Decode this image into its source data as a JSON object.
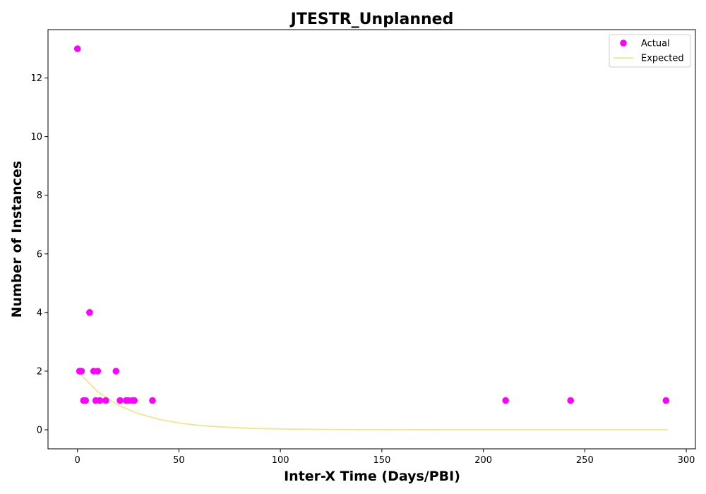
{
  "chart_data": {
    "type": "scatter",
    "title": "JTESTR_Unplanned",
    "xlabel": "Inter-X Time (Days/PBI)",
    "ylabel": "Number of Instances",
    "xlim": [
      -14.5,
      304.5
    ],
    "ylim": [
      -0.65,
      13.65
    ],
    "xticks": [
      0,
      50,
      100,
      150,
      200,
      250,
      300
    ],
    "yticks": [
      0,
      2,
      4,
      6,
      8,
      10,
      12
    ],
    "grid": false,
    "legend_position": "top-right",
    "series": [
      {
        "name": "Actual",
        "kind": "scatter",
        "color": "#ff00ff",
        "points": [
          {
            "x": 0,
            "y": 13
          },
          {
            "x": 1,
            "y": 2
          },
          {
            "x": 2,
            "y": 2
          },
          {
            "x": 3,
            "y": 1
          },
          {
            "x": 4,
            "y": 1
          },
          {
            "x": 6,
            "y": 4
          },
          {
            "x": 8,
            "y": 2
          },
          {
            "x": 9,
            "y": 1
          },
          {
            "x": 10,
            "y": 2
          },
          {
            "x": 11,
            "y": 1
          },
          {
            "x": 14,
            "y": 1
          },
          {
            "x": 19,
            "y": 2
          },
          {
            "x": 21,
            "y": 1
          },
          {
            "x": 24,
            "y": 1
          },
          {
            "x": 25,
            "y": 1
          },
          {
            "x": 27,
            "y": 1
          },
          {
            "x": 28,
            "y": 1
          },
          {
            "x": 37,
            "y": 1
          },
          {
            "x": 211,
            "y": 1
          },
          {
            "x": 243,
            "y": 1
          },
          {
            "x": 290,
            "y": 1
          }
        ]
      },
      {
        "name": "Expected",
        "kind": "line",
        "color": "#f0e68c",
        "points": [
          {
            "x": 0,
            "y": 2.0
          },
          {
            "x": 10,
            "y": 1.3
          },
          {
            "x": 20,
            "y": 0.84
          },
          {
            "x": 30,
            "y": 0.55
          },
          {
            "x": 40,
            "y": 0.36
          },
          {
            "x": 50,
            "y": 0.23
          },
          {
            "x": 60,
            "y": 0.15
          },
          {
            "x": 70,
            "y": 0.1
          },
          {
            "x": 80,
            "y": 0.065
          },
          {
            "x": 90,
            "y": 0.042
          },
          {
            "x": 100,
            "y": 0.027
          },
          {
            "x": 125,
            "y": 0.009
          },
          {
            "x": 150,
            "y": 0.003
          },
          {
            "x": 200,
            "y": 0.0
          },
          {
            "x": 250,
            "y": 0.0
          },
          {
            "x": 291,
            "y": 0.0
          }
        ]
      }
    ]
  }
}
